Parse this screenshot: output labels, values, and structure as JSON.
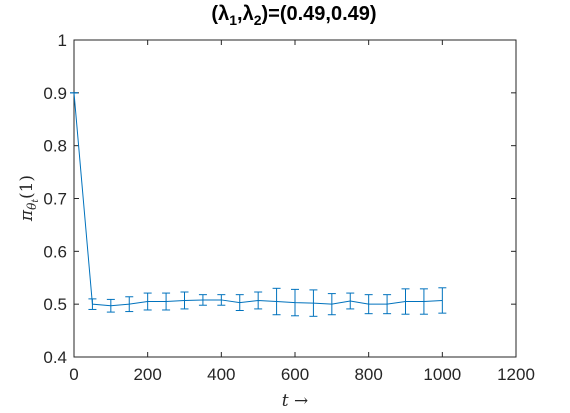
{
  "chart_data": {
    "type": "line",
    "title": "(λ1,λ2)=(0.49,0.49)",
    "title_parts": {
      "prefix": "(λ",
      "sub1": "1",
      "mid": ",λ",
      "sub2": "2",
      "suffix": ")=(0.49,0.49)"
    },
    "xlabel": "t →",
    "ylabel_parts": {
      "pi": "π",
      "theta": "θ",
      "t": "t",
      "arg": "(1)"
    },
    "xlim": [
      0,
      1200
    ],
    "ylim": [
      0.4,
      1.0
    ],
    "xticks": [
      0,
      200,
      400,
      600,
      800,
      1000,
      1200
    ],
    "yticks": [
      0.4,
      0.5,
      0.6,
      0.7,
      0.8,
      0.9,
      1.0
    ],
    "ytick_labels": [
      "0.4",
      "0.5",
      "0.6",
      "0.7",
      "0.8",
      "0.9",
      "1"
    ],
    "grid": false,
    "series": [
      {
        "color": "#0072bd",
        "x": [
          0,
          50,
          100,
          150,
          200,
          250,
          300,
          350,
          400,
          450,
          500,
          550,
          600,
          650,
          700,
          750,
          800,
          850,
          900,
          950,
          1000
        ],
        "y": [
          0.9,
          0.5,
          0.497,
          0.5,
          0.505,
          0.505,
          0.507,
          0.508,
          0.508,
          0.503,
          0.507,
          0.505,
          0.503,
          0.502,
          0.5,
          0.506,
          0.5,
          0.5,
          0.505,
          0.505,
          0.507
        ],
        "err": [
          0.0,
          0.01,
          0.012,
          0.014,
          0.016,
          0.016,
          0.016,
          0.01,
          0.01,
          0.015,
          0.016,
          0.025,
          0.025,
          0.025,
          0.02,
          0.015,
          0.018,
          0.018,
          0.024,
          0.024,
          0.024
        ]
      }
    ]
  }
}
